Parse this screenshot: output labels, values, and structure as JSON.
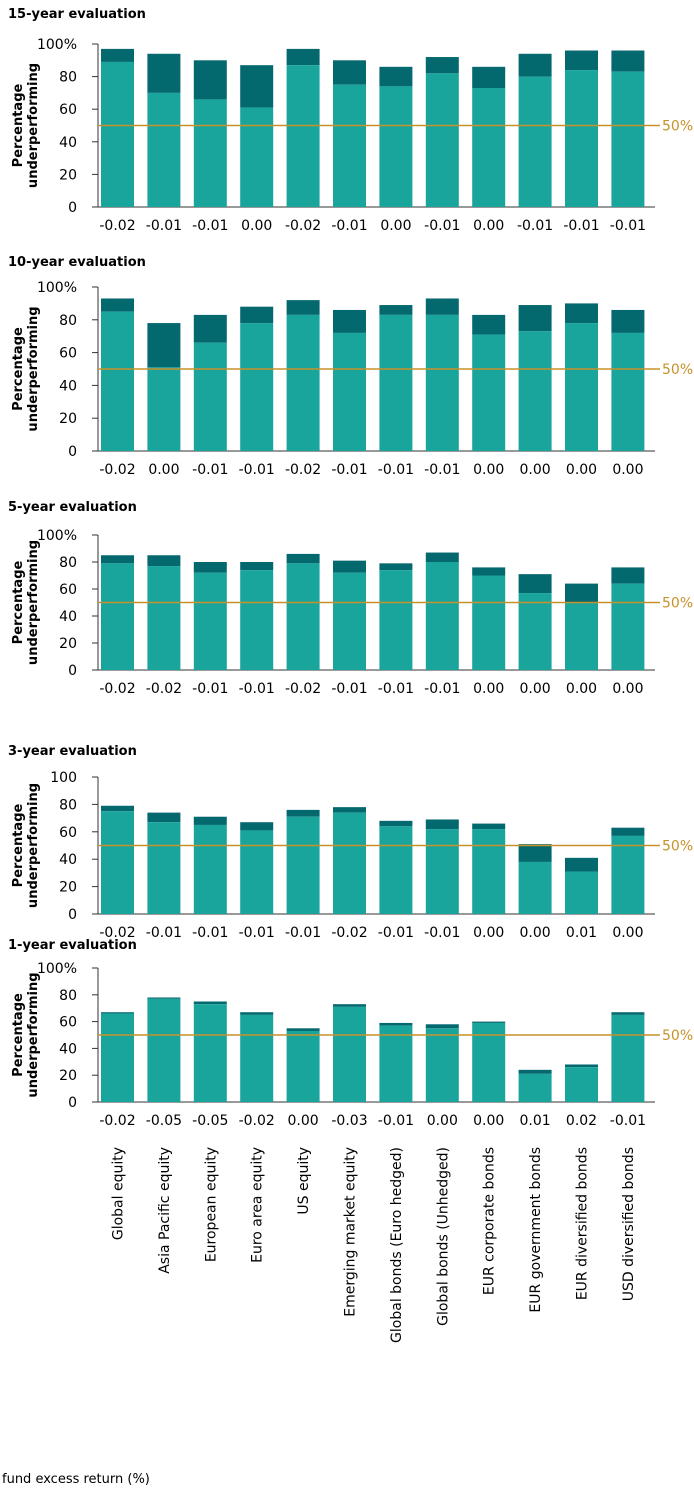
{
  "chart_data": {
    "type": "bar",
    "stacked": true,
    "categories": [
      "Global equity",
      "Asia Pacific equity",
      "European equity",
      "Euro area equity",
      "US equity",
      "Emerging market equity",
      "Global bonds (Euro hedged)",
      "Global bonds (Unhedged)",
      "EUR corporate bonds",
      "EUR government bonds",
      "EUR diversified bonds",
      "USD diversified bonds"
    ],
    "ylabel": "Percentage underperforming",
    "reference_line": {
      "value": 50,
      "label": "50%"
    },
    "colors": {
      "lower": "#1aa59c",
      "upper": "#04686f",
      "reference": "#c8922a",
      "axis": "#333333"
    },
    "footer_label": "fund excess return (%)",
    "panels": [
      {
        "title": "15-year evaluation",
        "ylim": [
          0,
          100
        ],
        "yticks": [
          "0",
          "20",
          "40",
          "60",
          "80",
          "100%"
        ],
        "lower": [
          89,
          70,
          66,
          61,
          87,
          75,
          74,
          82,
          73,
          80,
          84,
          83
        ],
        "total": [
          97,
          94,
          90,
          87,
          97,
          90,
          86,
          92,
          86,
          94,
          96,
          96
        ],
        "returns": [
          "-0.02",
          "-0.01",
          "-0.01",
          "0.00",
          "-0.02",
          "-0.01",
          "0.00",
          "-0.01",
          "0.00",
          "-0.01",
          "-0.01",
          "-0.01"
        ]
      },
      {
        "title": "10-year evaluation",
        "ylim": [
          0,
          100
        ],
        "yticks": [
          "0",
          "20",
          "40",
          "60",
          "80",
          "100%"
        ],
        "lower": [
          85,
          51,
          66,
          78,
          83,
          72,
          83,
          83,
          71,
          73,
          78,
          72
        ],
        "total": [
          93,
          78,
          83,
          88,
          92,
          86,
          89,
          93,
          83,
          89,
          90,
          86
        ],
        "returns": [
          "-0.02",
          "0.00",
          "-0.01",
          "-0.01",
          "-0.02",
          "-0.01",
          "-0.01",
          "-0.01",
          "0.00",
          "0.00",
          "0.00",
          "0.00"
        ]
      },
      {
        "title": "5-year evaluation",
        "ylim": [
          0,
          100
        ],
        "yticks": [
          "0",
          "20",
          "40",
          "60",
          "80",
          "100%"
        ],
        "lower": [
          79,
          77,
          72,
          74,
          79,
          72,
          74,
          80,
          70,
          57,
          50,
          64
        ],
        "total": [
          85,
          85,
          80,
          80,
          86,
          81,
          79,
          87,
          76,
          71,
          64,
          76
        ],
        "returns": [
          "-0.02",
          "-0.02",
          "-0.01",
          "-0.01",
          "-0.02",
          "-0.01",
          "-0.01",
          "-0.01",
          "0.00",
          "0.00",
          "0.00",
          "0.00"
        ]
      },
      {
        "title": "3-year evaluation",
        "ylim": [
          0,
          100
        ],
        "yticks": [
          "0",
          "20",
          "40",
          "60",
          "80",
          "100"
        ],
        "lower": [
          75,
          67,
          65,
          61,
          71,
          74,
          64,
          62,
          62,
          38,
          31,
          57
        ],
        "total": [
          79,
          74,
          71,
          67,
          76,
          78,
          68,
          69,
          66,
          51,
          41,
          63
        ],
        "returns": [
          "-0.02",
          "-0.01",
          "-0.01",
          "-0.01",
          "-0.01",
          "-0.02",
          "-0.01",
          "-0.01",
          "0.00",
          "0.00",
          "0.01",
          "0.00"
        ]
      },
      {
        "title": "1-year evaluation",
        "ylim": [
          0,
          100
        ],
        "yticks": [
          "0",
          "20",
          "40",
          "60",
          "80",
          "100%"
        ],
        "lower": [
          66,
          77,
          73,
          65,
          53,
          71,
          57,
          55,
          59,
          21,
          26,
          65
        ],
        "total": [
          67,
          78,
          75,
          67,
          55,
          73,
          59,
          58,
          60,
          24,
          28,
          67
        ],
        "returns": [
          "-0.02",
          "-0.05",
          "-0.05",
          "-0.02",
          "0.00",
          "-0.03",
          "-0.01",
          "0.00",
          "0.00",
          "0.01",
          "0.02",
          "-0.01"
        ]
      }
    ]
  }
}
